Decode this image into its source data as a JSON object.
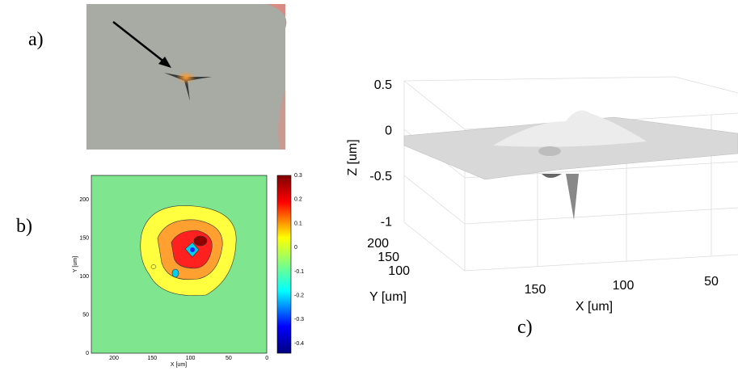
{
  "panels": [
    {
      "label": "a)"
    },
    {
      "label": "b)",
      "x_label": "X [um]",
      "y_label": "Y [um]",
      "xticks": [
        "200",
        "150",
        "100",
        "50",
        "0"
      ],
      "yticks": [
        "0",
        "50",
        "100",
        "150",
        "200"
      ],
      "colorbar_ticks": [
        "0.3",
        "0.2",
        "0.1",
        "0",
        "-0.1",
        "-0.2",
        "-0.3",
        "-0.4"
      ]
    },
    {
      "label": "c)",
      "z_label": "Z [um]",
      "y_label": "Y [um]",
      "x_label": "X [um]",
      "zticks": [
        "0.5",
        "0",
        "-0.5",
        "-1"
      ],
      "yticks": [
        "200",
        "150",
        "100"
      ],
      "xticks": [
        "150",
        "100",
        "50"
      ]
    }
  ]
}
